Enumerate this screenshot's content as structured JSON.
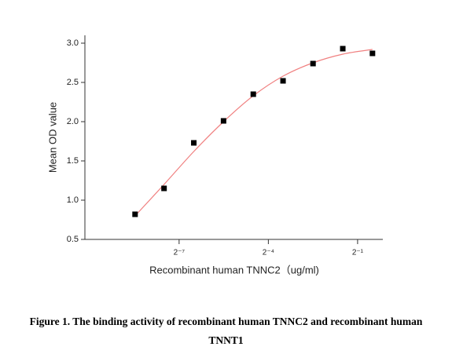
{
  "chart_data": {
    "type": "scatter",
    "x_label": "Recombinant human TNNC2（ug/ml)",
    "y_label": "Mean OD value",
    "x": [
      0.0028,
      0.0055,
      0.011,
      0.022,
      0.044,
      0.088,
      0.177,
      0.354,
      0.707
    ],
    "series": [
      {
        "type": "scatter",
        "color": "#000000",
        "values": [
          0.82,
          1.15,
          1.73,
          2.01,
          2.35,
          2.52,
          2.74,
          2.93,
          2.87
        ]
      },
      {
        "type": "line",
        "color": "#f08080",
        "values": [
          0.8,
          1.2,
          1.62,
          2.0,
          2.33,
          2.58,
          2.75,
          2.86,
          2.92
        ]
      }
    ],
    "xscale": "log2",
    "xlim": [
      0.00087,
      0.9
    ],
    "xticks": [
      {
        "value": 0.0078125,
        "label": "2⁻⁷"
      },
      {
        "value": 0.0625,
        "label": "2⁻⁴"
      },
      {
        "value": 0.5,
        "label": "2⁻¹"
      }
    ],
    "ylim": [
      0.5,
      3.1
    ],
    "yticks": [
      0.5,
      {
        "value": 1,
        "label": "1.0"
      },
      1.5,
      {
        "value": 2,
        "label": "2.0"
      },
      2.5,
      {
        "value": 3,
        "label": "3.0"
      }
    ]
  },
  "caption": "Figure 1. The binding activity of recombinant human TNNC2 and recombinant human TNNT1"
}
